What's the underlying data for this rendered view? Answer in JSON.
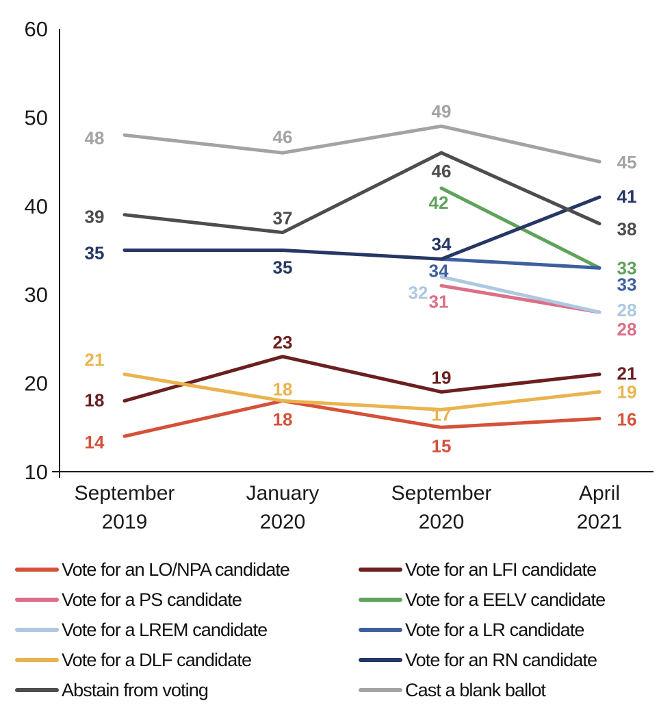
{
  "chart_data": {
    "type": "line",
    "title": "",
    "xlabel": "",
    "ylabel": "",
    "ylim": [
      10,
      60
    ],
    "yticks": [
      10,
      20,
      30,
      40,
      50,
      60
    ],
    "grid": false,
    "legend_position": "bottom",
    "categories": [
      [
        "September",
        "2019"
      ],
      [
        "January",
        "2020"
      ],
      [
        "September",
        "2020"
      ],
      [
        "April",
        "2021"
      ]
    ],
    "series": [
      {
        "name": "Vote for an LO/NPA candidate",
        "color": "#d4513a",
        "values": [
          14,
          18,
          15,
          16
        ]
      },
      {
        "name": "Vote for an LFI candidate",
        "color": "#6b1f1f",
        "values": [
          18,
          23,
          19,
          21
        ]
      },
      {
        "name": "Vote for a PS candidate",
        "color": "#db6f86",
        "values": [
          null,
          null,
          31,
          28
        ]
      },
      {
        "name": "Vote for a EELV candidate",
        "color": "#5fa35a",
        "values": [
          null,
          null,
          42,
          33
        ]
      },
      {
        "name": "Vote for a LREM candidate",
        "color": "#adc8e0",
        "values": [
          null,
          null,
          32,
          28
        ]
      },
      {
        "name": "Vote for a LR candidate",
        "color": "#3e5f9e",
        "values": [
          null,
          null,
          34,
          33
        ]
      },
      {
        "name": "Vote for a DLF candidate",
        "color": "#e9b34f",
        "values": [
          21,
          18,
          17,
          19
        ]
      },
      {
        "name": "Vote for an RN candidate",
        "color": "#263766",
        "values": [
          35,
          35,
          34,
          41
        ]
      },
      {
        "name": "Abstain from voting",
        "color": "#4d4d4d",
        "values": [
          39,
          37,
          46,
          38
        ]
      },
      {
        "name": "Cast a blank ballot",
        "color": "#a3a3a3",
        "values": [
          48,
          46,
          49,
          45
        ]
      }
    ]
  },
  "legend": {
    "items": [
      {
        "label": "Vote for an LO/NPA candidate",
        "color": "#d4513a"
      },
      {
        "label": "Vote for an LFI candidate",
        "color": "#6b1f1f"
      },
      {
        "label": "Vote for a PS candidate",
        "color": "#db6f86"
      },
      {
        "label": "Vote for a EELV candidate",
        "color": "#5fa35a"
      },
      {
        "label": "Vote for a LREM candidate",
        "color": "#adc8e0"
      },
      {
        "label": "Vote for a LR candidate",
        "color": "#3e5f9e"
      },
      {
        "label": "Vote for a DLF candidate",
        "color": "#e9b34f"
      },
      {
        "label": "Vote for an RN candidate",
        "color": "#263766"
      },
      {
        "label": "Abstain from voting",
        "color": "#4d4d4d"
      },
      {
        "label": "Cast a blank ballot",
        "color": "#a3a3a3"
      }
    ]
  }
}
